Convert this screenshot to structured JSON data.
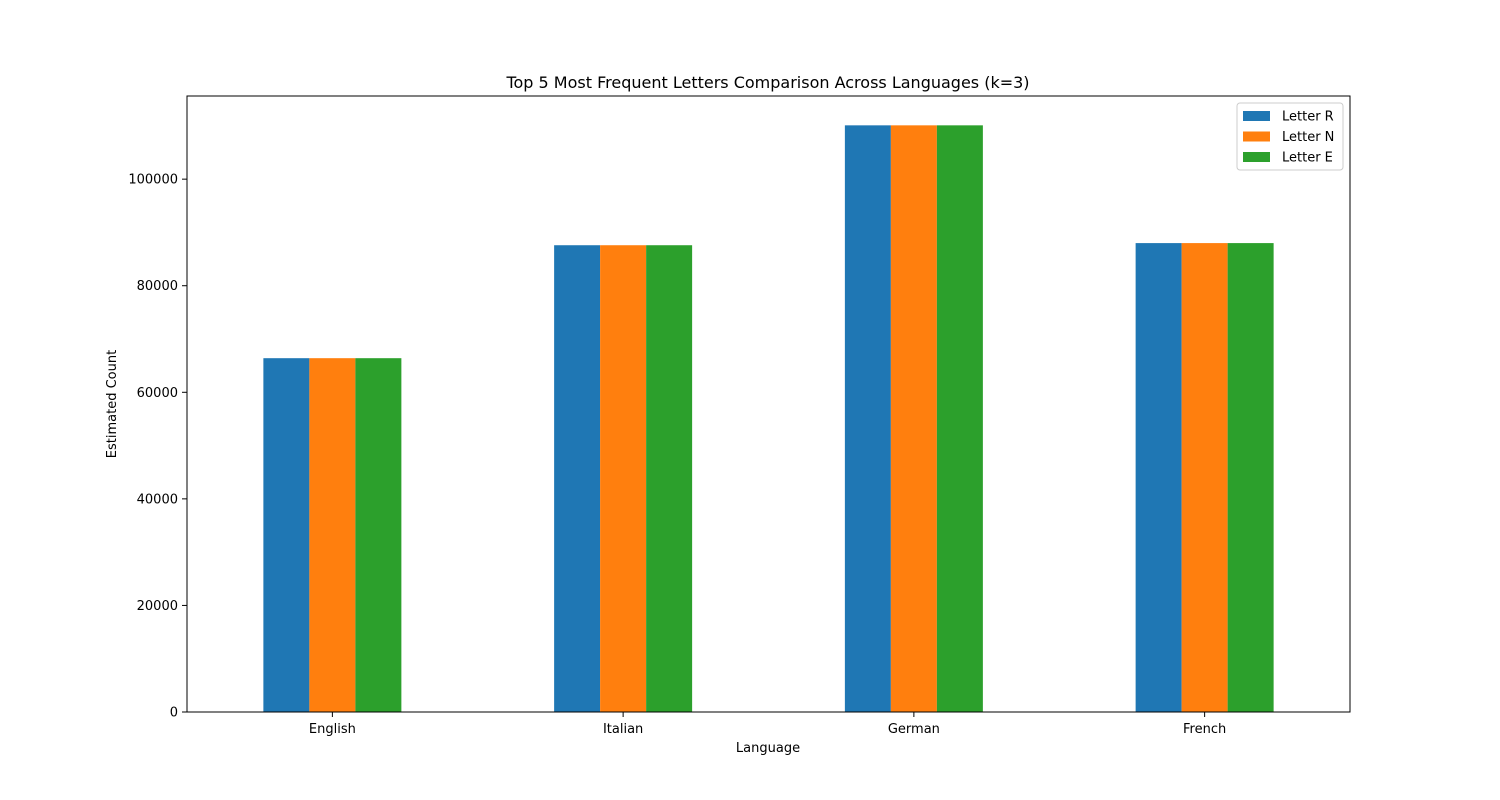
{
  "chart_data": {
    "type": "bar",
    "title": "Top 5 Most Frequent Letters Comparison Across Languages (k=3)",
    "xlabel": "Language",
    "ylabel": "Estimated Count",
    "categories": [
      "English",
      "Italian",
      "German",
      "French"
    ],
    "series": [
      {
        "name": "Letter R",
        "color": "#1f77b4",
        "values": [
          66400,
          87600,
          110100,
          88000
        ]
      },
      {
        "name": "Letter N",
        "color": "#ff7f0e",
        "values": [
          66400,
          87600,
          110100,
          88000
        ]
      },
      {
        "name": "Letter E",
        "color": "#2ca02c",
        "values": [
          66400,
          87600,
          110100,
          88000
        ]
      }
    ],
    "ylim": [
      0,
      115605
    ],
    "yticks": [
      0,
      20000,
      40000,
      60000,
      80000,
      100000
    ],
    "grid": false,
    "legend_position": "top-right"
  }
}
